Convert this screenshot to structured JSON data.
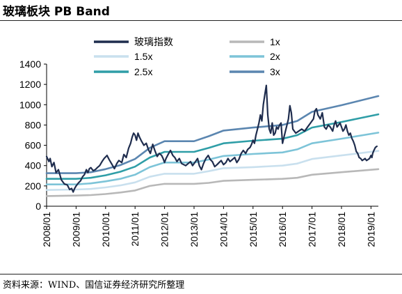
{
  "title": "玻璃板块 PB Band",
  "source": "资料来源：WIND、国信证券经济研究所整理",
  "chart_data": {
    "type": "line",
    "title": "玻璃板块 PB Band",
    "xlabel": "",
    "ylabel": "",
    "ylim": [
      0,
      1400
    ],
    "yticks": [
      "0",
      "200",
      "400",
      "600",
      "800",
      "1000",
      "1200",
      "1400"
    ],
    "xticks": [
      "2008/01",
      "2009/01",
      "2010/01",
      "2011/01",
      "2012/01",
      "2013/01",
      "2014/01",
      "2015/01",
      "2016/01",
      "2017/01",
      "2018/01",
      "2019/01"
    ],
    "xlim": [
      2008.0,
      2019.25
    ],
    "grid": false,
    "legend_position": "top",
    "series": [
      {
        "name": "玻璃指数",
        "color": "#1f2d4e",
        "points": [
          [
            2008.0,
            490
          ],
          [
            2008.08,
            440
          ],
          [
            2008.12,
            470
          ],
          [
            2008.18,
            390
          ],
          [
            2008.25,
            430
          ],
          [
            2008.32,
            330
          ],
          [
            2008.4,
            360
          ],
          [
            2008.5,
            260
          ],
          [
            2008.6,
            220
          ],
          [
            2008.7,
            210
          ],
          [
            2008.78,
            165
          ],
          [
            2008.85,
            175
          ],
          [
            2008.9,
            140
          ],
          [
            2008.95,
            175
          ],
          [
            2009.0,
            200
          ],
          [
            2009.08,
            230
          ],
          [
            2009.15,
            250
          ],
          [
            2009.22,
            290
          ],
          [
            2009.28,
            310
          ],
          [
            2009.35,
            360
          ],
          [
            2009.4,
            330
          ],
          [
            2009.45,
            370
          ],
          [
            2009.5,
            380
          ],
          [
            2009.58,
            350
          ],
          [
            2009.65,
            360
          ],
          [
            2009.72,
            380
          ],
          [
            2009.8,
            400
          ],
          [
            2009.88,
            440
          ],
          [
            2009.95,
            470
          ],
          [
            2010.05,
            500
          ],
          [
            2010.12,
            460
          ],
          [
            2010.2,
            420
          ],
          [
            2010.3,
            370
          ],
          [
            2010.38,
            420
          ],
          [
            2010.45,
            450
          ],
          [
            2010.55,
            430
          ],
          [
            2010.62,
            510
          ],
          [
            2010.7,
            480
          ],
          [
            2010.78,
            570
          ],
          [
            2010.85,
            620
          ],
          [
            2010.9,
            680
          ],
          [
            2010.95,
            720
          ],
          [
            2011.0,
            700
          ],
          [
            2011.05,
            650
          ],
          [
            2011.1,
            720
          ],
          [
            2011.15,
            680
          ],
          [
            2011.22,
            640
          ],
          [
            2011.3,
            600
          ],
          [
            2011.38,
            620
          ],
          [
            2011.45,
            560
          ],
          [
            2011.52,
            520
          ],
          [
            2011.6,
            610
          ],
          [
            2011.67,
            550
          ],
          [
            2011.75,
            490
          ],
          [
            2011.82,
            520
          ],
          [
            2011.9,
            500
          ],
          [
            2011.95,
            470
          ],
          [
            2012.0,
            430
          ],
          [
            2012.05,
            470
          ],
          [
            2012.12,
            510
          ],
          [
            2012.2,
            550
          ],
          [
            2012.28,
            500
          ],
          [
            2012.35,
            480
          ],
          [
            2012.42,
            440
          ],
          [
            2012.5,
            470
          ],
          [
            2012.58,
            420
          ],
          [
            2012.65,
            410
          ],
          [
            2012.72,
            400
          ],
          [
            2012.8,
            420
          ],
          [
            2012.88,
            440
          ],
          [
            2012.95,
            400
          ],
          [
            2013.05,
            440
          ],
          [
            2013.12,
            470
          ],
          [
            2013.18,
            400
          ],
          [
            2013.25,
            360
          ],
          [
            2013.32,
            420
          ],
          [
            2013.4,
            470
          ],
          [
            2013.48,
            500
          ],
          [
            2013.55,
            460
          ],
          [
            2013.62,
            440
          ],
          [
            2013.7,
            390
          ],
          [
            2013.78,
            410
          ],
          [
            2013.85,
            430
          ],
          [
            2013.92,
            450
          ],
          [
            2014.0,
            410
          ],
          [
            2014.08,
            430
          ],
          [
            2014.15,
            470
          ],
          [
            2014.22,
            440
          ],
          [
            2014.3,
            460
          ],
          [
            2014.38,
            480
          ],
          [
            2014.45,
            430
          ],
          [
            2014.52,
            460
          ],
          [
            2014.6,
            520
          ],
          [
            2014.67,
            550
          ],
          [
            2014.75,
            520
          ],
          [
            2014.82,
            560
          ],
          [
            2014.9,
            580
          ],
          [
            2014.95,
            610
          ],
          [
            2015.0,
            650
          ],
          [
            2015.05,
            620
          ],
          [
            2015.1,
            700
          ],
          [
            2015.15,
            760
          ],
          [
            2015.2,
            820
          ],
          [
            2015.25,
            900
          ],
          [
            2015.3,
            840
          ],
          [
            2015.35,
            1000
          ],
          [
            2015.4,
            1100
          ],
          [
            2015.45,
            1190
          ],
          [
            2015.5,
            900
          ],
          [
            2015.55,
            760
          ],
          [
            2015.6,
            720
          ],
          [
            2015.65,
            820
          ],
          [
            2015.7,
            700
          ],
          [
            2015.75,
            720
          ],
          [
            2015.8,
            780
          ],
          [
            2015.85,
            760
          ],
          [
            2015.9,
            800
          ],
          [
            2015.95,
            820
          ],
          [
            2016.0,
            620
          ],
          [
            2016.05,
            680
          ],
          [
            2016.1,
            740
          ],
          [
            2016.15,
            800
          ],
          [
            2016.2,
            860
          ],
          [
            2016.25,
            990
          ],
          [
            2016.3,
            920
          ],
          [
            2016.35,
            760
          ],
          [
            2016.45,
            720
          ],
          [
            2016.55,
            740
          ],
          [
            2016.65,
            760
          ],
          [
            2016.75,
            740
          ],
          [
            2016.85,
            780
          ],
          [
            2016.95,
            820
          ],
          [
            2017.05,
            860
          ],
          [
            2017.1,
            940
          ],
          [
            2017.15,
            960
          ],
          [
            2017.2,
            900
          ],
          [
            2017.28,
            860
          ],
          [
            2017.35,
            920
          ],
          [
            2017.42,
            780
          ],
          [
            2017.48,
            760
          ],
          [
            2017.55,
            800
          ],
          [
            2017.62,
            780
          ],
          [
            2017.7,
            740
          ],
          [
            2017.75,
            800
          ],
          [
            2017.8,
            840
          ],
          [
            2017.85,
            780
          ],
          [
            2017.9,
            800
          ],
          [
            2017.95,
            820
          ],
          [
            2018.0,
            780
          ],
          [
            2018.05,
            740
          ],
          [
            2018.1,
            760
          ],
          [
            2018.15,
            800
          ],
          [
            2018.2,
            740
          ],
          [
            2018.25,
            700
          ],
          [
            2018.3,
            720
          ],
          [
            2018.35,
            670
          ],
          [
            2018.4,
            640
          ],
          [
            2018.45,
            600
          ],
          [
            2018.5,
            540
          ],
          [
            2018.55,
            520
          ],
          [
            2018.6,
            480
          ],
          [
            2018.65,
            470
          ],
          [
            2018.7,
            450
          ],
          [
            2018.75,
            460
          ],
          [
            2018.8,
            470
          ],
          [
            2018.85,
            450
          ],
          [
            2018.9,
            460
          ],
          [
            2018.95,
            470
          ],
          [
            2019.0,
            500
          ],
          [
            2019.03,
            480
          ],
          [
            2019.06,
            520
          ],
          [
            2019.1,
            550
          ],
          [
            2019.15,
            580
          ],
          [
            2019.2,
            590
          ]
        ]
      },
      {
        "name": "1x",
        "color": "#b8b8b8",
        "points": [
          [
            2008.0,
            100
          ],
          [
            2009.0,
            105
          ],
          [
            2009.5,
            110
          ],
          [
            2010.0,
            120
          ],
          [
            2010.5,
            135
          ],
          [
            2011.0,
            155
          ],
          [
            2011.5,
            200
          ],
          [
            2012.0,
            220
          ],
          [
            2013.0,
            220
          ],
          [
            2013.5,
            230
          ],
          [
            2014.0,
            250
          ],
          [
            2015.0,
            260
          ],
          [
            2016.0,
            270
          ],
          [
            2016.5,
            280
          ],
          [
            2017.0,
            310
          ],
          [
            2018.0,
            335
          ],
          [
            2019.25,
            365
          ]
        ]
      },
      {
        "name": "1.5x",
        "color": "#c9e0ee",
        "points": [
          [
            2008.0,
            160
          ],
          [
            2009.0,
            165
          ],
          [
            2009.5,
            170
          ],
          [
            2010.0,
            185
          ],
          [
            2010.5,
            205
          ],
          [
            2011.0,
            235
          ],
          [
            2011.5,
            290
          ],
          [
            2012.0,
            320
          ],
          [
            2013.0,
            320
          ],
          [
            2013.5,
            345
          ],
          [
            2014.0,
            375
          ],
          [
            2015.0,
            385
          ],
          [
            2016.0,
            400
          ],
          [
            2016.5,
            420
          ],
          [
            2017.0,
            465
          ],
          [
            2018.0,
            500
          ],
          [
            2019.25,
            545
          ]
        ]
      },
      {
        "name": "2x",
        "color": "#7dc4d8",
        "points": [
          [
            2008.0,
            215
          ],
          [
            2009.0,
            215
          ],
          [
            2009.5,
            225
          ],
          [
            2010.0,
            245
          ],
          [
            2010.5,
            270
          ],
          [
            2011.0,
            310
          ],
          [
            2011.5,
            385
          ],
          [
            2012.0,
            430
          ],
          [
            2013.0,
            430
          ],
          [
            2013.5,
            460
          ],
          [
            2014.0,
            495
          ],
          [
            2015.0,
            515
          ],
          [
            2016.0,
            530
          ],
          [
            2016.5,
            560
          ],
          [
            2017.0,
            620
          ],
          [
            2018.0,
            665
          ],
          [
            2019.25,
            725
          ]
        ]
      },
      {
        "name": "2.5x",
        "color": "#2f9ea7",
        "points": [
          [
            2008.0,
            270
          ],
          [
            2009.0,
            270
          ],
          [
            2009.5,
            280
          ],
          [
            2010.0,
            305
          ],
          [
            2010.5,
            340
          ],
          [
            2011.0,
            390
          ],
          [
            2011.5,
            480
          ],
          [
            2012.0,
            535
          ],
          [
            2013.0,
            535
          ],
          [
            2013.5,
            575
          ],
          [
            2014.0,
            620
          ],
          [
            2015.0,
            645
          ],
          [
            2016.0,
            665
          ],
          [
            2016.5,
            700
          ],
          [
            2017.0,
            775
          ],
          [
            2018.0,
            830
          ],
          [
            2019.25,
            905
          ]
        ]
      },
      {
        "name": "3x",
        "color": "#5b86b0",
        "points": [
          [
            2008.0,
            325
          ],
          [
            2009.0,
            325
          ],
          [
            2009.5,
            335
          ],
          [
            2010.0,
            365
          ],
          [
            2010.5,
            405
          ],
          [
            2011.0,
            465
          ],
          [
            2011.5,
            575
          ],
          [
            2012.0,
            640
          ],
          [
            2013.0,
            640
          ],
          [
            2013.5,
            690
          ],
          [
            2014.0,
            745
          ],
          [
            2015.0,
            775
          ],
          [
            2016.0,
            800
          ],
          [
            2016.5,
            840
          ],
          [
            2017.0,
            930
          ],
          [
            2018.0,
            995
          ],
          [
            2019.25,
            1085
          ]
        ]
      }
    ]
  }
}
